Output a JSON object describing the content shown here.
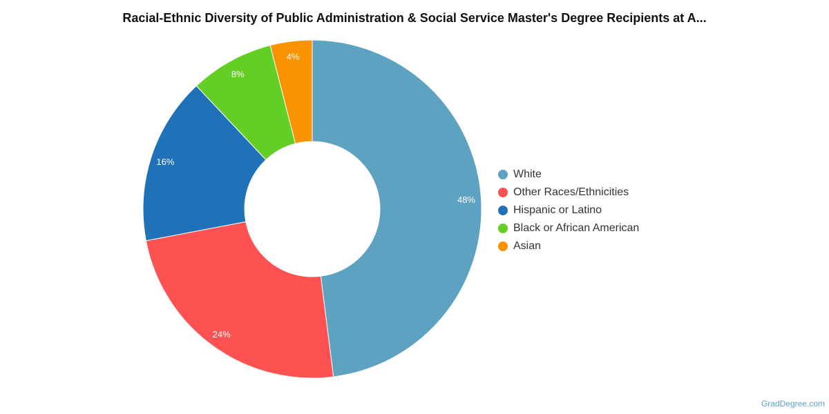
{
  "chart_data": {
    "type": "pie",
    "title": "Racial-Ethnic Diversity of Public Administration & Social Service Master's Degree Recipients at A...",
    "donut": true,
    "categories": [
      "White",
      "Other Races/Ethnicities",
      "Hispanic or Latino",
      "Black or African American",
      "Asian"
    ],
    "values": [
      48,
      24,
      16,
      8,
      4
    ],
    "labels": [
      "48%",
      "24%",
      "16%",
      "8%",
      "4%"
    ],
    "colors": [
      "#5da2c0",
      "#fe5152",
      "#1f72b8",
      "#63cf24",
      "#f99300"
    ],
    "legend_position": "right"
  },
  "credit": "GradDegree.com"
}
